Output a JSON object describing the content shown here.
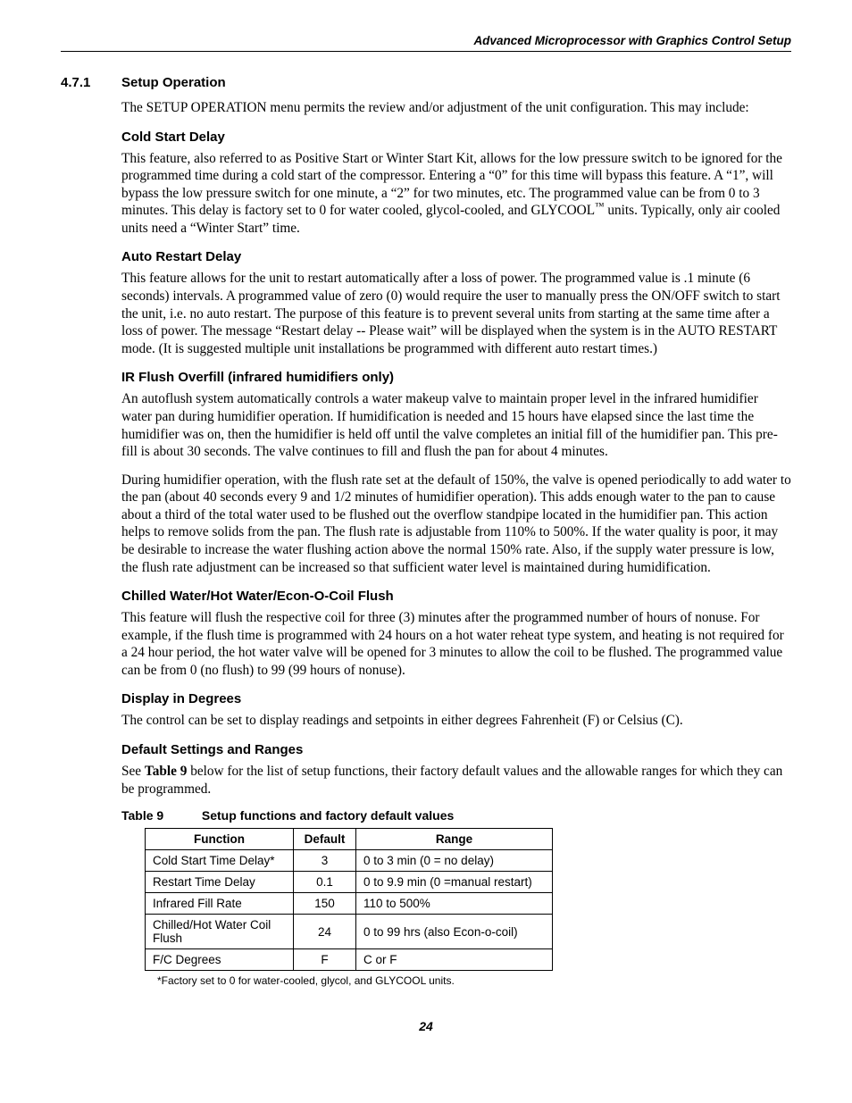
{
  "header": "Advanced Microprocessor with Graphics Control Setup",
  "section": {
    "num": "4.7.1",
    "title": "Setup Operation"
  },
  "intro": "The SETUP OPERATION menu permits the review and/or adjustment of the unit configuration. This may include:",
  "sub": {
    "cold": {
      "h": "Cold Start Delay",
      "p1a": "This feature, also referred to as Positive Start or Winter Start Kit, allows for the low pressure switch to be ignored for the programmed time during a cold start of the compressor. Entering a “0” for this time will bypass this feature. A “1”, will bypass the low pressure switch for one minute, a “2” for two minutes, etc. The programmed value can be from 0 to 3 minutes. This delay is factory set to 0 for water cooled, glycol-cooled, and GLYCOOL",
      "p1b": " units. Typically, only air cooled units need a “Winter Start” time."
    },
    "auto": {
      "h": "Auto Restart Delay",
      "p": "This feature allows for the unit to restart automatically after a loss of power. The programmed value is .1 minute (6 seconds) intervals. A programmed value of zero (0) would require the user to manually press the ON/OFF switch to start the unit, i.e. no auto restart. The purpose of this feature is to prevent several units from starting at the same time after a loss of power. The message “Restart delay -- Please wait” will be displayed when the system is in the AUTO RESTART mode. (It is suggested multiple unit installations be programmed with different auto restart times.)"
    },
    "ir": {
      "h": "IR Flush Overfill (infrared humidifiers only)",
      "p1": "An autoflush system automatically controls a water makeup valve to maintain proper level in the infrared humidifier water pan during humidifier operation. If humidification is needed and 15 hours have elapsed since the last time the humidifier was on, then the humidifier is held off until the valve completes an initial fill of the humidifier pan. This pre-fill is about 30 seconds. The valve continues to fill and flush the pan for about 4 minutes.",
      "p2": "During humidifier operation, with the flush rate set at the default of 150%, the valve is opened periodically to add water to the pan (about 40 seconds every 9 and 1/2 minutes of humidifier operation). This adds enough water to the pan to cause about a third of the total water used to be flushed out the overflow standpipe located in the humidifier pan. This action helps to remove solids from the pan. The flush rate is adjustable from 110% to 500%. If the water quality is poor, it may be desirable to increase the water flushing action above the normal 150% rate. Also, if the supply water pressure is low, the flush rate adjustment can be increased so that sufficient water level is maintained during humidification."
    },
    "chw": {
      "h": "Chilled Water/Hot Water/Econ-O-Coil Flush",
      "p": "This feature will flush the respective coil for three (3) minutes after the programmed number of hours of nonuse. For example, if the flush time is programmed with 24 hours on a hot water reheat type system, and heating is not required for a 24 hour period, the hot water valve will be opened for 3 minutes to allow the coil to be flushed. The programmed value can be from 0 (no flush) to 99 (99 hours of nonuse)."
    },
    "disp": {
      "h": "Display in Degrees",
      "p": "The control can be set to display readings and setpoints in either degrees Fahrenheit (F) or Celsius (C)."
    },
    "def": {
      "h": "Default Settings and Ranges",
      "p_a": "See ",
      "p_ref": "Table 9",
      "p_b": " below for the list of setup functions, their factory default values and the allowable ranges for which they can be programmed."
    }
  },
  "table": {
    "label": "Table 9",
    "caption": "Setup functions and factory default values",
    "headers": {
      "c1": "Function",
      "c2": "Default",
      "c3": "Range"
    },
    "rows": [
      {
        "f": "Cold Start Time Delay*",
        "d": "3",
        "r": "0 to 3 min (0 = no delay)"
      },
      {
        "f": "Restart Time Delay",
        "d": "0.1",
        "r": "0 to 9.9 min (0 =manual restart)"
      },
      {
        "f": "Infrared Fill Rate",
        "d": "150",
        "r": "110 to 500%"
      },
      {
        "f": "Chilled/Hot Water Coil Flush",
        "d": "24",
        "r": "0 to 99 hrs (also Econ-o-coil)"
      },
      {
        "f": "F/C Degrees",
        "d": "F",
        "r": "C or F"
      }
    ],
    "footnote": "*Factory set to 0 for water-cooled, glycol, and GLYCOOL units."
  },
  "pagenum": "24"
}
